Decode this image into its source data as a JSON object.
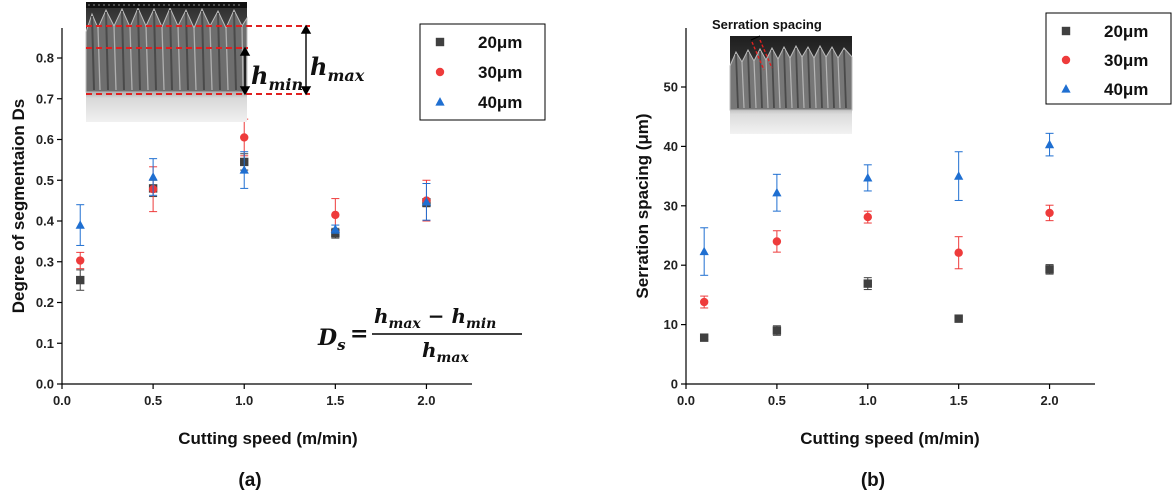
{
  "chart_data": [
    {
      "type": "scatter",
      "panel_label": "(a)",
      "xlabel": "Cutting speed (m/min)",
      "ylabel": "Degree of segmentaion Ds",
      "xlim": [
        0,
        2.25
      ],
      "ylim": [
        0,
        0.87
      ],
      "xticks": [
        "0.0",
        "0.5",
        "1.0",
        "1.5",
        "2.0"
      ],
      "yticks": [
        "0.0",
        "0.1",
        "0.2",
        "0.3",
        "0.4",
        "0.5",
        "0.6",
        "0.7",
        "0.8"
      ],
      "x": [
        0.1,
        0.5,
        1.0,
        1.5,
        2.0
      ],
      "legend_position": "top-right",
      "series": [
        {
          "name": "20μm",
          "color": "#404040",
          "marker": "square",
          "values": [
            0.255,
            0.48,
            0.545,
            0.37,
            0.445
          ],
          "errors": [
            0.025,
            0.02,
            0.02,
            0.012,
            0.01
          ]
        },
        {
          "name": "30μm",
          "color": "#ee3b3b",
          "marker": "circle",
          "values": [
            0.303,
            0.478,
            0.605,
            0.415,
            0.45
          ],
          "errors": [
            0.02,
            0.055,
            0.045,
            0.04,
            0.05
          ]
        },
        {
          "name": "40μm",
          "color": "#1f6fd1",
          "marker": "triangle",
          "values": [
            0.39,
            0.508,
            0.525,
            0.38,
            0.447
          ],
          "errors": [
            0.05,
            0.045,
            0.045,
            0.01,
            0.045
          ]
        }
      ],
      "annotations": {
        "hmax": "h",
        "hmax_sub": "max",
        "hmin": "h",
        "hmin_sub": "min",
        "formula_lhs": "D",
        "formula_lhs_sub": "s",
        "formula_eq": "=",
        "formula_num_a": "h",
        "formula_num_a_sub": "max",
        "formula_num_op": "−",
        "formula_num_b": "h",
        "formula_num_b_sub": "min",
        "formula_den": "h",
        "formula_den_sub": "max"
      }
    },
    {
      "type": "scatter",
      "panel_label": "(b)",
      "xlabel": "Cutting speed (m/min)",
      "ylabel": "Serration spacing (μm)",
      "xlim": [
        0,
        2.25
      ],
      "ylim": [
        0,
        57
      ],
      "xticks": [
        "0.0",
        "0.5",
        "1.0",
        "1.5",
        "2.0"
      ],
      "yticks": [
        "0",
        "10",
        "20",
        "30",
        "40",
        "50"
      ],
      "x": [
        0.1,
        0.5,
        1.0,
        1.5,
        2.0
      ],
      "legend_position": "top-right",
      "series": [
        {
          "name": "20μm",
          "color": "#404040",
          "marker": "square",
          "values": [
            7.8,
            9.0,
            16.9,
            11.0,
            19.3
          ],
          "errors": [
            0.3,
            0.8,
            1.0,
            0.3,
            0.8
          ]
        },
        {
          "name": "30μm",
          "color": "#ee3b3b",
          "marker": "circle",
          "values": [
            13.8,
            24.0,
            28.1,
            22.1,
            28.8
          ],
          "errors": [
            1.0,
            1.8,
            1.0,
            2.7,
            1.3
          ]
        },
        {
          "name": "40μm",
          "color": "#1f6fd1",
          "marker": "triangle",
          "values": [
            22.3,
            32.2,
            34.7,
            35.0,
            40.3
          ],
          "errors": [
            4.0,
            3.1,
            2.2,
            4.1,
            1.9
          ]
        }
      ],
      "annotations": {
        "inset_label": "Serration spacing"
      }
    }
  ]
}
